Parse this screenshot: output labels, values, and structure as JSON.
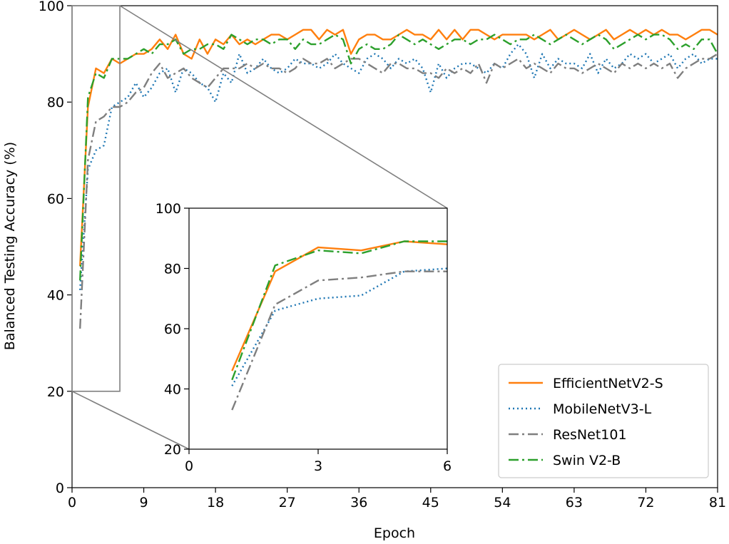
{
  "chart_data": {
    "type": "line",
    "xlabel": "Epoch",
    "ylabel": "Balanced Testing Accuracy (%)",
    "xlim": [
      0,
      81
    ],
    "ylim": [
      0,
      100
    ],
    "xticks": [
      0,
      9,
      18,
      27,
      36,
      45,
      54,
      63,
      72,
      81
    ],
    "yticks": [
      0,
      20,
      40,
      60,
      80,
      100
    ],
    "legend_position": "lower-right",
    "series": [
      {
        "name": "EfficientNetV2-S",
        "color": "#ff7f0e",
        "dash": "solid",
        "values": [
          46,
          79,
          87,
          86,
          89,
          88,
          89,
          90,
          90,
          91,
          93,
          91,
          94,
          90,
          89,
          93,
          90,
          93,
          92,
          94,
          92,
          93,
          92,
          93,
          94,
          94,
          93,
          94,
          95,
          95,
          93,
          95,
          94,
          95,
          90,
          93,
          94,
          94,
          93,
          93,
          94,
          95,
          94,
          94,
          93,
          95,
          93,
          95,
          93,
          95,
          95,
          94,
          93,
          94,
          94,
          94,
          94,
          93,
          94,
          95,
          93,
          94,
          95,
          94,
          93,
          94,
          95,
          93,
          94,
          95,
          94,
          95,
          94,
          95,
          94,
          94,
          93,
          94,
          95,
          95,
          94
        ]
      },
      {
        "name": "MobileNetV3-L",
        "color": "#1f77b4",
        "dash": "dotted",
        "values": [
          41,
          66,
          70,
          71,
          79,
          80,
          81,
          84,
          81,
          83,
          86,
          87,
          82,
          87,
          86,
          84,
          83,
          80,
          86,
          84,
          90,
          86,
          87,
          89,
          87,
          86,
          87,
          89,
          88,
          88,
          87,
          88,
          90,
          88,
          87,
          86,
          89,
          90,
          89,
          87,
          89,
          88,
          89,
          87,
          82,
          88,
          85,
          87,
          88,
          88,
          87,
          86,
          88,
          87,
          90,
          92,
          90,
          85,
          90,
          87,
          89,
          88,
          88,
          87,
          90,
          86,
          89,
          87,
          88,
          90,
          89,
          90,
          88,
          89,
          90,
          87,
          89,
          90,
          88,
          89,
          89
        ]
      },
      {
        "name": "ResNet101",
        "color": "#7f7f7f",
        "dash": "dashdot",
        "values": [
          33,
          68,
          76,
          77,
          79,
          79,
          80,
          82,
          83,
          86,
          88,
          85,
          86,
          87,
          85,
          84,
          83,
          85,
          87,
          87,
          87,
          88,
          87,
          88,
          87,
          87,
          86,
          87,
          89,
          88,
          88,
          89,
          87,
          88,
          89,
          89,
          88,
          87,
          86,
          88,
          88,
          87,
          87,
          86,
          86,
          85,
          87,
          86,
          87,
          86,
          88,
          84,
          88,
          87,
          88,
          89,
          87,
          88,
          87,
          86,
          88,
          87,
          87,
          86,
          87,
          88,
          87,
          86,
          88,
          87,
          88,
          87,
          88,
          87,
          88,
          85,
          87,
          88,
          89,
          89,
          90
        ]
      },
      {
        "name": "Swin V2-B",
        "color": "#2ca02c",
        "dash": "dashdot",
        "values": [
          43,
          81,
          86,
          85,
          89,
          89,
          89,
          90,
          91,
          90,
          92,
          92,
          93,
          90,
          91,
          91,
          92,
          92,
          91,
          94,
          93,
          92,
          93,
          93,
          92,
          93,
          93,
          91,
          93,
          92,
          92,
          93,
          94,
          93,
          88,
          91,
          92,
          91,
          91,
          92,
          94,
          93,
          92,
          93,
          92,
          91,
          92,
          93,
          93,
          92,
          93,
          93,
          94,
          93,
          92,
          93,
          93,
          94,
          93,
          92,
          93,
          94,
          93,
          92,
          93,
          94,
          93,
          91,
          92,
          93,
          94,
          93,
          94,
          94,
          93,
          91,
          92,
          91,
          93,
          93,
          90
        ]
      }
    ],
    "inset": {
      "xlim": [
        0,
        6
      ],
      "ylim": [
        20,
        100
      ],
      "xticks": [
        0,
        3,
        6
      ],
      "yticks": [
        20,
        40,
        60,
        80,
        100
      ],
      "zoom_region": {
        "x": [
          0,
          6
        ],
        "y": [
          20,
          100
        ]
      },
      "series": [
        {
          "name": "EfficientNetV2-S",
          "x": [
            1,
            2,
            3,
            4,
            5,
            6
          ],
          "values": [
            46,
            79,
            87,
            86,
            89,
            88
          ]
        },
        {
          "name": "MobileNetV3-L",
          "x": [
            1,
            2,
            3,
            4,
            5,
            6
          ],
          "values": [
            41,
            66,
            70,
            71,
            79,
            80
          ]
        },
        {
          "name": "ResNet101",
          "x": [
            1,
            2,
            3,
            4,
            5,
            6
          ],
          "values": [
            33,
            68,
            76,
            77,
            79,
            79
          ]
        },
        {
          "name": "Swin V2-B",
          "x": [
            1,
            2,
            3,
            4,
            5,
            6
          ],
          "values": [
            43,
            81,
            86,
            85,
            89,
            89
          ]
        }
      ]
    }
  }
}
